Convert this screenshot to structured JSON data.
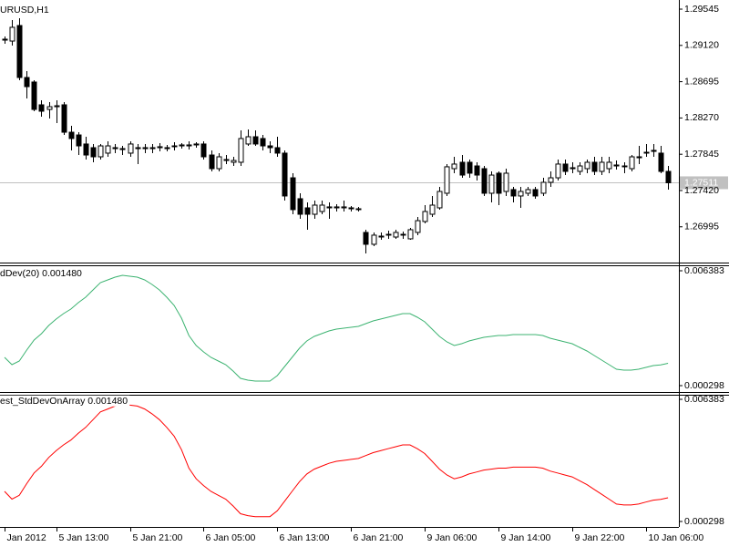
{
  "chart_data": [
    {
      "type": "candlestick",
      "title": "URUSD,H1",
      "categories": [
        "Jan 2012",
        null,
        null,
        null,
        null,
        null,
        null,
        "5 Jan 13:00",
        null,
        null,
        null,
        null,
        null,
        null,
        null,
        null,
        null,
        "5 Jan 21:00",
        null,
        null,
        null,
        null,
        null,
        null,
        null,
        null,
        null,
        "6 Jan 05:00",
        null,
        null,
        null,
        null,
        null,
        null,
        null,
        null,
        null,
        "6 Jan 13:00",
        null,
        null,
        null,
        null,
        null,
        null,
        null,
        null,
        null,
        "6 Jan 21:00",
        null,
        null,
        null,
        null,
        null,
        null,
        null,
        null,
        null,
        "9 Jan 06:00",
        null,
        null,
        null,
        null,
        null,
        null,
        null,
        null,
        null,
        "9 Jan 14:00",
        null,
        null,
        null,
        null,
        null,
        null,
        null,
        null,
        null,
        "9 Jan 22:00",
        null,
        null,
        null,
        null,
        null,
        null,
        null,
        null,
        null,
        "10 Jan 06:00",
        null,
        null,
        null
      ],
      "open": [
        1.29193,
        1.29171,
        1.29353,
        1.28744,
        1.28691,
        1.28424,
        1.2837,
        1.28402,
        1.28424,
        1.28103,
        1.28071,
        1.27965,
        1.27922,
        1.27815,
        1.27858,
        1.27922,
        1.279,
        1.27858,
        1.27911,
        1.27922,
        1.27911,
        1.27922,
        1.27922,
        1.27943,
        1.27943,
        1.27943,
        1.27954,
        1.27965,
        1.27836,
        1.27676,
        1.27772,
        1.27751,
        1.27751,
        1.27965,
        1.2805,
        1.28029,
        1.27943,
        1.27922,
        1.27858,
        1.27569,
        1.27324,
        1.27217,
        1.27142,
        1.27174,
        1.27217,
        1.27217,
        1.27217,
        1.27217,
        1.27206,
        1.26929,
        1.2679,
        1.26875,
        1.26897,
        1.26875,
        1.26897,
        1.26854,
        1.26929,
        1.27057,
        1.27142,
        1.27217,
        1.27388,
        1.27676,
        1.27751,
        1.27751,
        1.27708,
        1.27676,
        1.27388,
        1.27623,
        1.27409,
        1.27431,
        1.27356,
        1.27388,
        1.27431,
        1.27388,
        1.27516,
        1.27569,
        1.2773,
        1.27676,
        1.27644,
        1.27676,
        1.27751,
        1.27644,
        1.27676,
        1.27708,
        1.27708,
        1.27676,
        1.27815,
        1.27858,
        1.2789,
        1.27858,
        1.27644
      ],
      "high": [
        1.29225,
        1.29417,
        1.29438,
        1.28819,
        1.28712,
        1.28477,
        1.28456,
        1.28477,
        1.28456,
        1.28178,
        1.28103,
        1.2805,
        1.27965,
        1.27965,
        1.27997,
        1.27965,
        1.27943,
        1.27997,
        1.27965,
        1.27965,
        1.27965,
        1.27975,
        1.27954,
        1.27986,
        1.27975,
        1.27997,
        1.27986,
        1.27997,
        1.2789,
        1.27858,
        1.27836,
        1.27815,
        1.28125,
        1.28135,
        1.28125,
        1.28071,
        1.27997,
        1.2805,
        1.2789,
        1.27623,
        1.27388,
        1.27281,
        1.27302,
        1.27302,
        1.27281,
        1.2726,
        1.27302,
        1.27238,
        1.27228,
        1.26961,
        1.26929,
        1.26929,
        1.2695,
        1.26961,
        1.26939,
        1.26982,
        1.2711,
        1.27249,
        1.27356,
        1.27463,
        1.2773,
        1.27815,
        1.27836,
        1.27783,
        1.27751,
        1.27708,
        1.27644,
        1.27644,
        1.27676,
        1.27463,
        1.27463,
        1.27463,
        1.27463,
        1.27569,
        1.27644,
        1.27783,
        1.27783,
        1.27751,
        1.27751,
        1.27783,
        1.27815,
        1.27815,
        1.27815,
        1.27772,
        1.27751,
        1.27836,
        1.27943,
        1.27965,
        1.27965,
        1.27943,
        1.27708
      ],
      "low": [
        1.29139,
        1.29118,
        1.28712,
        1.28499,
        1.28349,
        1.28285,
        1.28264,
        1.2821,
        1.28071,
        1.2789,
        1.27836,
        1.27783,
        1.27751,
        1.27783,
        1.27815,
        1.27858,
        1.27836,
        1.27815,
        1.2773,
        1.27858,
        1.27858,
        1.27879,
        1.27879,
        1.2789,
        1.27911,
        1.279,
        1.27922,
        1.27783,
        1.27644,
        1.27644,
        1.2773,
        1.27708,
        1.27708,
        1.27943,
        1.27943,
        1.2789,
        1.27858,
        1.27815,
        1.27302,
        1.27142,
        1.27089,
        1.26961,
        1.27089,
        1.27142,
        1.27089,
        1.27174,
        1.27174,
        1.27174,
        1.27174,
        1.26683,
        1.26768,
        1.26843,
        1.26854,
        1.26854,
        1.26854,
        1.26843,
        1.26897,
        1.27035,
        1.2711,
        1.27196,
        1.27356,
        1.27623,
        1.27569,
        1.27569,
        1.27537,
        1.27356,
        1.27281,
        1.27249,
        1.27356,
        1.27281,
        1.27217,
        1.27356,
        1.27324,
        1.27356,
        1.27463,
        1.27537,
        1.27601,
        1.27623,
        1.27601,
        1.27623,
        1.27601,
        1.27601,
        1.27623,
        1.27666,
        1.27623,
        1.27644,
        1.2773,
        1.27815,
        1.27815,
        1.27623,
        1.27431
      ],
      "close": [
        1.29182,
        1.29332,
        1.28744,
        1.28637,
        1.2837,
        1.28349,
        1.28402,
        1.28413,
        1.28103,
        1.28029,
        1.27943,
        1.27836,
        1.27815,
        1.27943,
        1.27943,
        1.27911,
        1.27911,
        1.27965,
        1.27922,
        1.27911,
        1.27922,
        1.27933,
        1.27911,
        1.27933,
        1.27954,
        1.27954,
        1.27965,
        1.27815,
        1.27676,
        1.27815,
        1.27783,
        1.27772,
        1.28029,
        1.2805,
        1.27965,
        1.27943,
        1.27922,
        1.27858,
        1.27356,
        1.27196,
        1.27142,
        1.27142,
        1.27249,
        1.27249,
        1.27228,
        1.27228,
        1.27228,
        1.27206,
        1.27196,
        1.2679,
        1.26897,
        1.26886,
        1.26907,
        1.26929,
        1.26907,
        1.26961,
        1.27067,
        1.27174,
        1.27249,
        1.27409,
        1.27698,
        1.2773,
        1.27601,
        1.27623,
        1.27601,
        1.27388,
        1.27601,
        1.27388,
        1.27623,
        1.27356,
        1.27409,
        1.27431,
        1.27356,
        1.27516,
        1.27569,
        1.2773,
        1.27644,
        1.27687,
        1.27708,
        1.27751,
        1.27644,
        1.27751,
        1.27751,
        1.27719,
        1.27698,
        1.27815,
        1.27804,
        1.27868,
        1.27879,
        1.27644,
        1.27511
      ],
      "up_color": "#ffffff",
      "down_color": "#000000",
      "ylim": [
        1.26576,
        1.29652
      ],
      "yticks": [
        {
          "value": 1.29545,
          "label": "1.29545"
        },
        {
          "value": 1.2912,
          "label": "1.29120"
        },
        {
          "value": 1.28695,
          "label": "1.28695"
        },
        {
          "value": 1.2827,
          "label": "1.28270"
        },
        {
          "value": 1.27845,
          "label": "1.27845"
        },
        {
          "value": 1.2742,
          "label": "1.27420"
        },
        {
          "value": 1.26995,
          "label": "1.26995"
        }
      ],
      "last_price": 1.27511
    },
    {
      "type": "line",
      "title": "dDev(20) 0.001480",
      "series": [
        {
          "color": "#3cb371",
          "values": [
            0.001795,
            0.001409,
            0.001602,
            0.002182,
            0.002713,
            0.003051,
            0.003486,
            0.003824,
            0.004114,
            0.004355,
            0.004693,
            0.004983,
            0.00537,
            0.005756,
            0.005901,
            0.006046,
            0.006142,
            0.006094,
            0.006046,
            0.005901,
            0.005659,
            0.00537,
            0.004983,
            0.004548,
            0.003872,
            0.002955,
            0.002423,
            0.002085,
            0.001795,
            0.001602,
            0.001409,
            0.001071,
            0.000684,
            0.000588,
            0.00054,
            0.00054,
            0.00054,
            0.000829,
            0.001312,
            0.001795,
            0.002278,
            0.002665,
            0.002906,
            0.003051,
            0.003196,
            0.003293,
            0.003341,
            0.003389,
            0.003438,
            0.003582,
            0.003727,
            0.003824,
            0.003921,
            0.004017,
            0.004114,
            0.004114,
            0.003921,
            0.003679,
            0.003293,
            0.002906,
            0.002616,
            0.002423,
            0.00252,
            0.002665,
            0.002761,
            0.002858,
            0.002906,
            0.002955,
            0.002955,
            0.003003,
            0.003003,
            0.003003,
            0.003003,
            0.002955,
            0.00281,
            0.002713,
            0.002616,
            0.00252,
            0.002327,
            0.002133,
            0.001892,
            0.00165,
            0.001409,
            0.001167,
            0.001119,
            0.001119,
            0.001167,
            0.001264,
            0.001361,
            0.0014,
            0.00148
          ]
        }
      ],
      "ylim": [
        0.000298,
        0.006383
      ],
      "yticks": [
        0.006383,
        0.000298
      ]
    },
    {
      "type": "line",
      "title": "est_StdDevOnArray 0.001480",
      "series": [
        {
          "color": "#ff0000",
          "values": [
            0.001795,
            0.001409,
            0.001602,
            0.002182,
            0.002713,
            0.003051,
            0.003486,
            0.003824,
            0.004114,
            0.004355,
            0.004693,
            0.004983,
            0.00537,
            0.005756,
            0.005901,
            0.006046,
            0.006142,
            0.006094,
            0.006046,
            0.005901,
            0.005659,
            0.00537,
            0.004983,
            0.004548,
            0.003872,
            0.002955,
            0.002423,
            0.002085,
            0.001795,
            0.001602,
            0.001409,
            0.001071,
            0.000684,
            0.000588,
            0.00054,
            0.00054,
            0.00054,
            0.000829,
            0.001312,
            0.001795,
            0.002278,
            0.002665,
            0.002906,
            0.003051,
            0.003196,
            0.003293,
            0.003341,
            0.003389,
            0.003438,
            0.003582,
            0.003727,
            0.003824,
            0.003921,
            0.004017,
            0.004114,
            0.004114,
            0.003921,
            0.003679,
            0.003293,
            0.002906,
            0.002616,
            0.002423,
            0.00252,
            0.002665,
            0.002761,
            0.002858,
            0.002906,
            0.002955,
            0.002955,
            0.003003,
            0.003003,
            0.003003,
            0.003003,
            0.002955,
            0.00281,
            0.002713,
            0.002616,
            0.00252,
            0.002327,
            0.002133,
            0.001892,
            0.00165,
            0.001409,
            0.001167,
            0.001119,
            0.001119,
            0.001167,
            0.001264,
            0.001361,
            0.0014,
            0.00148
          ]
        }
      ],
      "ylim": [
        0.000298,
        0.006383
      ],
      "yticks": [
        0.006383,
        0.000298
      ]
    }
  ]
}
